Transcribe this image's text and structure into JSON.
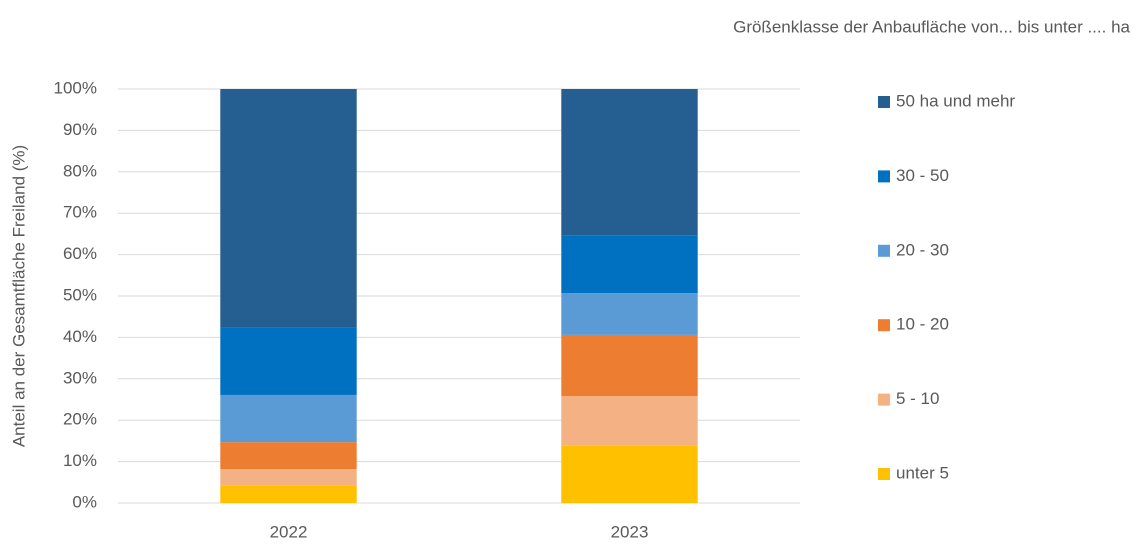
{
  "chart_data": {
    "type": "stacked_bar",
    "legend_title": "Größenklasse der Anbaufläche von... bis unter .... ha",
    "y_label": "Anteil an der Gesamtfläche Freiland (%)",
    "categories": [
      "2022",
      "2023"
    ],
    "series": [
      {
        "name": "unter 5",
        "color": "#FFC000",
        "values": [
          4.3,
          13.8
        ]
      },
      {
        "name": "5 - 10",
        "color": "#F4B183",
        "values": [
          3.9,
          12.0
        ]
      },
      {
        "name": "10 - 20",
        "color": "#ED7D31",
        "values": [
          6.5,
          14.8
        ]
      },
      {
        "name": "20 - 30",
        "color": "#5B9BD5",
        "values": [
          11.4,
          10.1
        ]
      },
      {
        "name": "30 - 50",
        "color": "#0070C0",
        "values": [
          16.2,
          14.0
        ]
      },
      {
        "name": "50 ha und mehr",
        "color": "#255E91",
        "values": [
          57.7,
          35.3
        ]
      }
    ],
    "ylim": [
      0,
      100
    ],
    "yticks": [
      {
        "value": 0,
        "label": "0%"
      },
      {
        "value": 10,
        "label": "10%"
      },
      {
        "value": 20,
        "label": "20%"
      },
      {
        "value": 30,
        "label": "30%"
      },
      {
        "value": 40,
        "label": "40%"
      },
      {
        "value": 50,
        "label": "50%"
      },
      {
        "value": 60,
        "label": "60%"
      },
      {
        "value": 70,
        "label": "70%"
      },
      {
        "value": 80,
        "label": "80%"
      },
      {
        "value": 90,
        "label": "90%"
      },
      {
        "value": 100,
        "label": "100%"
      }
    ],
    "grid": true,
    "legend": "right"
  }
}
